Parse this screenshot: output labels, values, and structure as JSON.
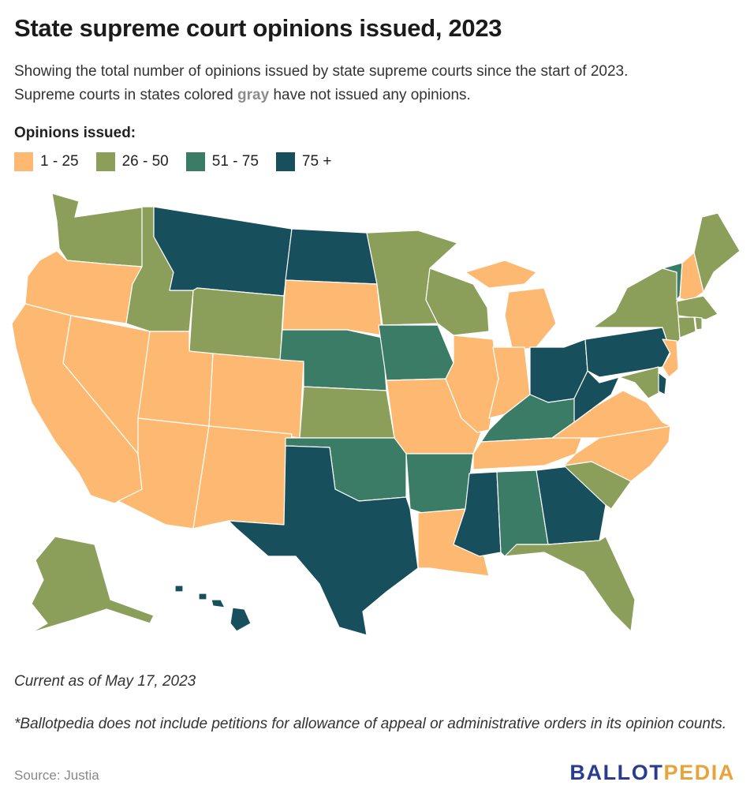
{
  "title": "State supreme court opinions issued, 2023",
  "subtitle": {
    "line1": "Showing the total number of opinions issued by state supreme courts since the start of 2023.",
    "line2_pre": "Supreme courts in states colored ",
    "line2_gray": "gray",
    "line2_post": " have not issued any opinions."
  },
  "legend": {
    "title": "Opinions issued:",
    "items": [
      {
        "label": "1 - 25",
        "color": "#FDB971"
      },
      {
        "label": "26 - 50",
        "color": "#8B9F5A"
      },
      {
        "label": "51 - 75",
        "color": "#3A7C65"
      },
      {
        "label": "75 +",
        "color": "#17505C"
      }
    ]
  },
  "map": {
    "bins": {
      "a": "1 - 25",
      "b": "26 - 50",
      "c": "51 - 75",
      "d": "75 +"
    },
    "states": {
      "WA": "b",
      "OR": "a",
      "CA": "a",
      "NV": "a",
      "ID": "b",
      "MT": "d",
      "WY": "b",
      "UT": "a",
      "CO": "a",
      "AZ": "a",
      "NM": "a",
      "ND": "d",
      "SD": "a",
      "NE": "c",
      "KS": "b",
      "OK": "c",
      "TX": "d",
      "MN": "b",
      "IA": "c",
      "MO": "a",
      "AR": "c",
      "LA": "a",
      "WI": "b",
      "IL": "a",
      "MI": "a",
      "IN": "a",
      "OH": "d",
      "KY": "c",
      "TN": "a",
      "MS": "d",
      "AL": "c",
      "GA": "d",
      "FL": "b",
      "SC": "b",
      "NC": "a",
      "VA": "a",
      "WV": "d",
      "PA": "d",
      "NY": "b",
      "VT": "c",
      "NH": "a",
      "ME": "b",
      "MA": "b",
      "RI": "b",
      "CT": "b",
      "NJ": "a",
      "DE": "d",
      "MD": "b",
      "AK": "b",
      "HI": "d"
    }
  },
  "as_of": "Current as of May 17, 2023",
  "footnote": "*Ballotpedia does not include petitions for allowance of appeal or administrative orders in its opinion counts.",
  "source": "Source: Justia",
  "logo": {
    "part1": "BALLOT",
    "part2": "PEDIA"
  }
}
